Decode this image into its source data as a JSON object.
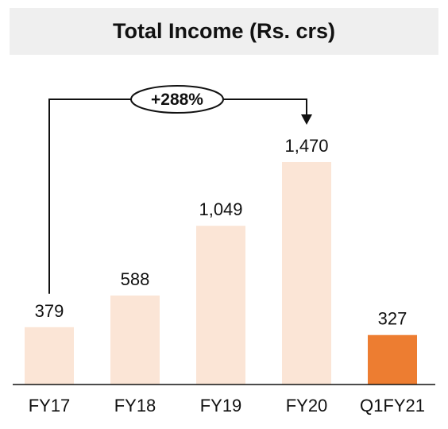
{
  "chart_data": {
    "type": "bar",
    "title": "Total Income (Rs. crs)",
    "categories": [
      "FY17",
      "FY18",
      "FY19",
      "FY20",
      "Q1FY21"
    ],
    "values": [
      379,
      588,
      1049,
      1470,
      327
    ],
    "value_labels": [
      "379",
      "588",
      "1,049",
      "1,470",
      "327"
    ],
    "xlabel": "",
    "ylabel": "",
    "ylim": [
      0,
      1470
    ],
    "grid": false,
    "legend": "none",
    "colors": {
      "default_bar": "#fbe5d6",
      "highlight_bar": "#ed7d31",
      "axis": "#111111"
    },
    "highlight_index": 4,
    "annotation": {
      "text": "+288%",
      "from_category": "FY17",
      "to_category": "FY20"
    }
  }
}
